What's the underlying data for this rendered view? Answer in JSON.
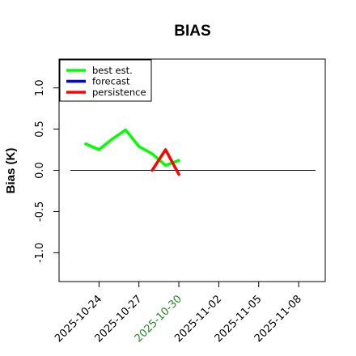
{
  "chart_data": {
    "type": "line",
    "title": "BIAS",
    "xlabel": "",
    "ylabel": "Bias (K)",
    "x_ticks": [
      "2025-10-24",
      "2025-10-27",
      "2025-10-30",
      "2025-11-02",
      "2025-11-05",
      "2025-11-08"
    ],
    "highlight_tick": "2025-10-30",
    "highlight_color": "#228b22",
    "y_ticks": [
      "-1.0",
      "-0.5",
      "0.0",
      "0.5",
      "1.0"
    ],
    "xlim": [
      "2025-10-21",
      "2025-11-10"
    ],
    "ylim": [
      -1.35,
      1.35
    ],
    "grid": false,
    "legend_position": "top-left",
    "reference_line": 0.0,
    "series": [
      {
        "name": "best est.",
        "color": "#00ff00",
        "x": [
          "2025-10-23",
          "2025-10-24",
          "2025-10-25",
          "2025-10-26",
          "2025-10-27",
          "2025-10-28",
          "2025-10-29",
          "2025-10-30"
        ],
        "y": [
          0.32,
          0.25,
          0.38,
          0.49,
          0.29,
          0.2,
          0.06,
          0.12
        ]
      },
      {
        "name": "forecast",
        "color": "#0000ff",
        "x": [],
        "y": []
      },
      {
        "name": "persistence",
        "color": "#ff0000",
        "x": [
          "2025-10-28",
          "2025-10-29",
          "2025-10-30"
        ],
        "y": [
          0.0,
          0.25,
          -0.05
        ]
      }
    ]
  }
}
